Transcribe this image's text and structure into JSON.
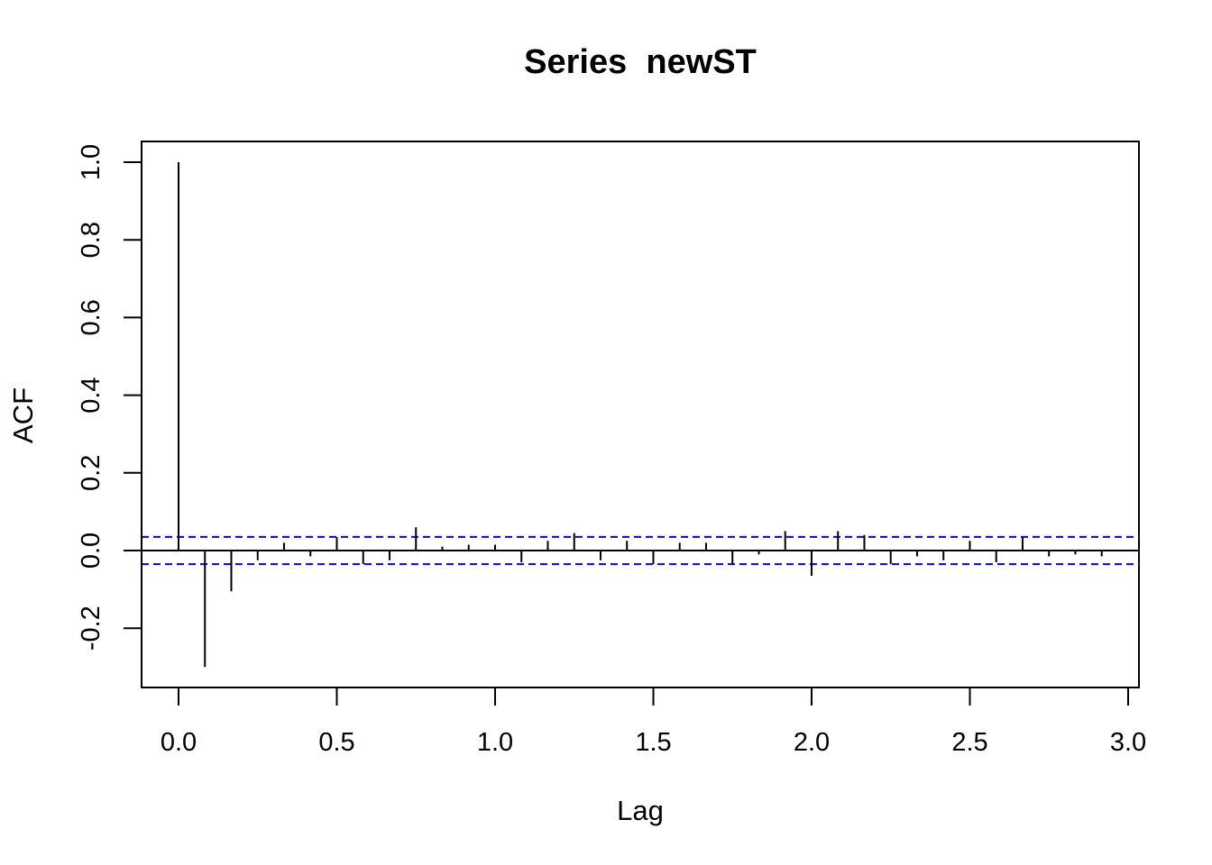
{
  "chart_data": {
    "type": "bar",
    "subtype": "acf-stem",
    "title": "Series  newST",
    "xlabel": "Lag",
    "ylabel": "ACF",
    "xlim": [
      -0.117,
      3.033
    ],
    "ylim": [
      -0.35,
      1.05
    ],
    "x_ticks": [
      {
        "value": 0.0,
        "label": "0.0"
      },
      {
        "value": 0.5,
        "label": "0.5"
      },
      {
        "value": 1.0,
        "label": "1.0"
      },
      {
        "value": 1.5,
        "label": "1.5"
      },
      {
        "value": 2.0,
        "label": "2.0"
      },
      {
        "value": 2.5,
        "label": "2.5"
      },
      {
        "value": 3.0,
        "label": "3.0"
      }
    ],
    "y_ticks": [
      {
        "value": -0.2,
        "label": "-0.2"
      },
      {
        "value": 0.0,
        "label": "0.0"
      },
      {
        "value": 0.2,
        "label": "0.2"
      },
      {
        "value": 0.4,
        "label": "0.4"
      },
      {
        "value": 0.6,
        "label": "0.6"
      },
      {
        "value": 0.8,
        "label": "0.8"
      },
      {
        "value": 1.0,
        "label": "1.0"
      }
    ],
    "confidence_bound": 0.035,
    "lag_step": 0.08333,
    "values": [
      1.0,
      -0.3,
      -0.105,
      -0.025,
      0.02,
      -0.015,
      0.035,
      -0.035,
      -0.025,
      0.06,
      0.01,
      0.015,
      0.015,
      -0.03,
      0.025,
      0.045,
      -0.025,
      0.025,
      -0.035,
      0.02,
      0.02,
      -0.035,
      -0.01,
      0.05,
      -0.065,
      0.05,
      0.04,
      -0.035,
      -0.015,
      -0.025,
      0.025,
      -0.03,
      0.035,
      -0.015,
      -0.01,
      -0.015
    ],
    "colors": {
      "stem": "#000000",
      "bound": "#0000ff",
      "zero": "#000000",
      "frame": "#000000"
    }
  }
}
